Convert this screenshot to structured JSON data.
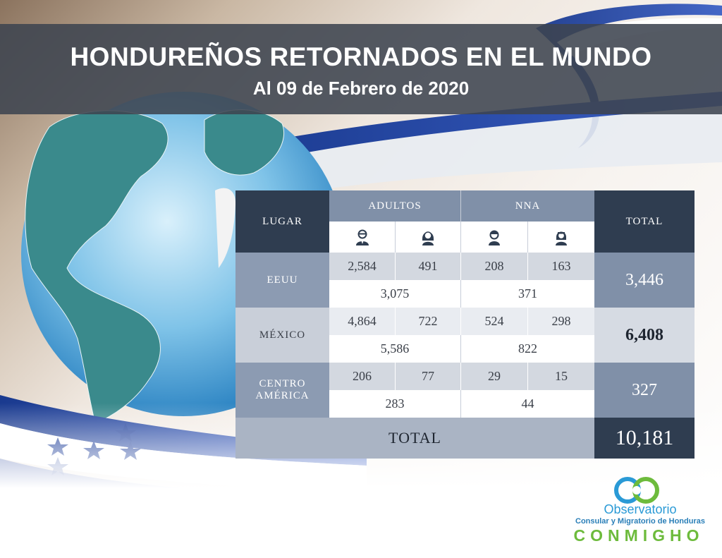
{
  "header": {
    "title": "HONDUREÑOS RETORNADOS EN EL MUNDO",
    "subtitle": "Al 09 de Febrero de 2020"
  },
  "table": {
    "headers": {
      "lugar": "LUGAR",
      "adultos": "ADULTOS",
      "nna": "NNA",
      "total": "TOTAL"
    },
    "icons": [
      "man-icon",
      "woman-icon",
      "boy-icon",
      "girl-icon"
    ],
    "rows": [
      {
        "place": "EEUU",
        "adult_men": "2,584",
        "adult_women": "491",
        "nna_boys": "208",
        "nna_girls": "163",
        "adults_subtotal": "3,075",
        "nna_subtotal": "371",
        "total": "3,446"
      },
      {
        "place": "MÉXICO",
        "adult_men": "4,864",
        "adult_women": "722",
        "nna_boys": "524",
        "nna_girls": "298",
        "adults_subtotal": "5,586",
        "nna_subtotal": "822",
        "total": "6,408"
      },
      {
        "place_line1": "CENTRO",
        "place_line2": "AMÉRICA",
        "adult_men": "206",
        "adult_women": "77",
        "nna_boys": "29",
        "nna_girls": "15",
        "adults_subtotal": "283",
        "nna_subtotal": "44",
        "total": "327"
      }
    ],
    "grand_total_label": "TOTAL",
    "grand_total": "10,181"
  },
  "logo": {
    "line1": "Observatorio",
    "line2": "Consular y Migratorio de Honduras",
    "line3": "CONMIGHO"
  },
  "colors": {
    "banner": "#3e4450",
    "dark_cell": "#2f3d50",
    "slate_cell": "#8090a8",
    "ribbon_blue": "#1d3f9a",
    "logo_blue": "#2a9ad6",
    "logo_green": "#6dbb3c"
  }
}
